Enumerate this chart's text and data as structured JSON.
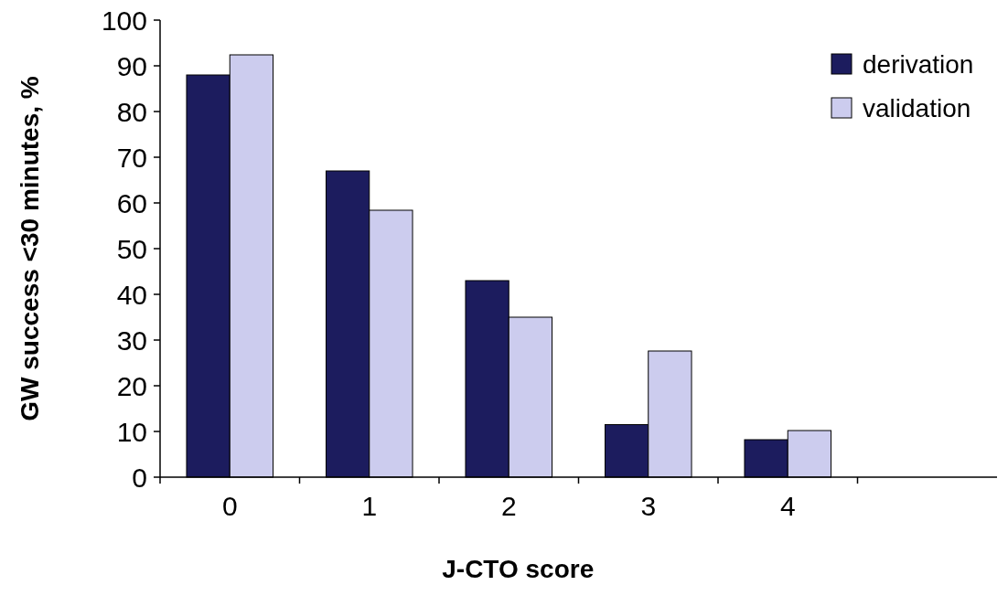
{
  "chart_data": {
    "type": "bar",
    "xlabel": "J-CTO score",
    "ylabel": "GW success <30 minutes, %",
    "categories": [
      "0",
      "1",
      "2",
      "3",
      "4",
      null
    ],
    "series": [
      {
        "name": "derivation",
        "color": "#1c1c5e",
        "values": [
          88,
          67,
          43,
          11.5,
          8.2,
          null
        ]
      },
      {
        "name": "validation",
        "color": "#ccccee",
        "values": [
          92.4,
          58.4,
          35,
          27.6,
          10.2,
          null
        ]
      }
    ],
    "ylim": [
      0,
      100
    ],
    "yticks": [
      0,
      10,
      20,
      30,
      40,
      50,
      60,
      70,
      80,
      90,
      100
    ],
    "grid": false,
    "legend": "top right"
  }
}
